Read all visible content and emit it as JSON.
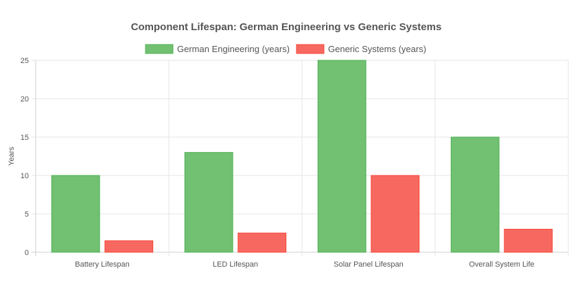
{
  "chart_data": {
    "type": "bar",
    "title": "Component Lifespan: German Engineering vs Generic Systems",
    "xlabel": "",
    "ylabel": "Years",
    "categories": [
      "Battery Lifespan",
      "LED Lifespan",
      "Solar Panel Lifespan",
      "Overall System Life"
    ],
    "series": [
      {
        "name": "German Engineering (years)",
        "values": [
          10,
          13,
          25,
          15
        ],
        "fill": "#72c072",
        "stroke": "#4caf50"
      },
      {
        "name": "Generic Systems (years)",
        "values": [
          1.5,
          2.5,
          10,
          3
        ],
        "fill": "#f76960",
        "stroke": "#f44336"
      }
    ],
    "ylim": [
      0,
      25
    ],
    "yticks": [
      0,
      5,
      10,
      15,
      20,
      25
    ],
    "grid": true,
    "legend": "top-center"
  }
}
